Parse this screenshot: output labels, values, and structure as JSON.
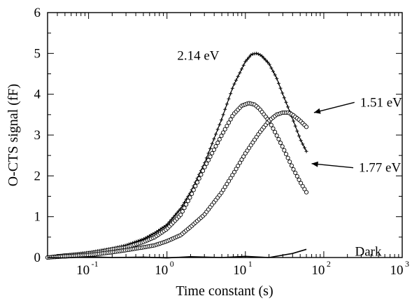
{
  "chart_data": {
    "type": "scatter",
    "title": "",
    "xlabel": "Time constant (s)",
    "ylabel": "O-CTS signal (fF)",
    "xscale": "log",
    "xlim": [
      0.03,
      1000
    ],
    "ylim": [
      0,
      6
    ],
    "grid": false,
    "x_ticks": [
      {
        "base": "10",
        "exp": "-1",
        "value": 0.1
      },
      {
        "base": "10",
        "exp": "0",
        "value": 1
      },
      {
        "base": "10",
        "exp": "1",
        "value": 10
      },
      {
        "base": "10",
        "exp": "2",
        "value": 100
      },
      {
        "base": "10",
        "exp": "3",
        "value": 1000
      }
    ],
    "y_ticks": [
      "0",
      "1",
      "2",
      "3",
      "4",
      "5",
      "6"
    ],
    "series": [
      {
        "name": "2.14 eV",
        "marker": "plus",
        "x": [
          0.03,
          0.05,
          0.08,
          0.1,
          0.15,
          0.2,
          0.3,
          0.5,
          0.7,
          1,
          1.5,
          2,
          3,
          5,
          7,
          10,
          12,
          14,
          16,
          20,
          25,
          30,
          40,
          50,
          60
        ],
        "y": [
          0.0,
          0.05,
          0.1,
          0.12,
          0.18,
          0.22,
          0.3,
          0.45,
          0.6,
          0.8,
          1.2,
          1.6,
          2.3,
          3.4,
          4.2,
          4.8,
          4.98,
          5.0,
          4.95,
          4.75,
          4.4,
          4.0,
          3.4,
          2.9,
          2.6
        ]
      },
      {
        "name": "1.77 eV",
        "marker": "circle",
        "x": [
          0.03,
          0.05,
          0.08,
          0.1,
          0.15,
          0.2,
          0.3,
          0.5,
          0.7,
          1,
          1.5,
          2,
          3,
          5,
          7,
          9,
          11,
          13,
          15,
          20,
          25,
          30,
          40,
          50,
          60
        ],
        "y": [
          0.0,
          0.05,
          0.08,
          0.1,
          0.15,
          0.2,
          0.25,
          0.38,
          0.5,
          0.7,
          1.05,
          1.5,
          2.2,
          3.0,
          3.5,
          3.72,
          3.78,
          3.75,
          3.65,
          3.35,
          3.0,
          2.7,
          2.2,
          1.85,
          1.6
        ]
      },
      {
        "name": "1.51 eV",
        "marker": "circle",
        "x": [
          0.03,
          0.05,
          0.08,
          0.1,
          0.15,
          0.2,
          0.3,
          0.5,
          0.7,
          1,
          1.5,
          2,
          3,
          5,
          7,
          10,
          15,
          20,
          25,
          30,
          35,
          40,
          50,
          60
        ],
        "y": [
          0.0,
          0.03,
          0.05,
          0.06,
          0.1,
          0.13,
          0.18,
          0.25,
          0.3,
          0.4,
          0.55,
          0.75,
          1.05,
          1.6,
          2.05,
          2.55,
          3.05,
          3.35,
          3.5,
          3.55,
          3.55,
          3.5,
          3.35,
          3.2
        ]
      },
      {
        "name": "Dark",
        "marker": "line",
        "x": [
          0.03,
          0.05,
          0.1,
          0.2,
          0.5,
          1,
          2,
          5,
          10,
          20,
          40,
          60
        ],
        "y": [
          0.0,
          -0.01,
          0.02,
          0.0,
          0.01,
          -0.01,
          0.02,
          0.0,
          0.03,
          0.0,
          0.1,
          0.2
        ]
      }
    ],
    "annotations": [
      {
        "text": "2.14 eV",
        "x": 1.35,
        "y": 4.95,
        "arrow": false
      },
      {
        "text": "1.51 eV",
        "x": 290,
        "y": 3.8,
        "arrow": true,
        "arrow_to_x": 75,
        "arrow_to_y": 3.55
      },
      {
        "text": "1.77 eV",
        "x": 280,
        "y": 2.2,
        "arrow": true,
        "arrow_to_x": 70,
        "arrow_to_y": 2.3
      },
      {
        "text": "Dark",
        "x": 250,
        "y": 0.15,
        "arrow": false
      }
    ]
  }
}
